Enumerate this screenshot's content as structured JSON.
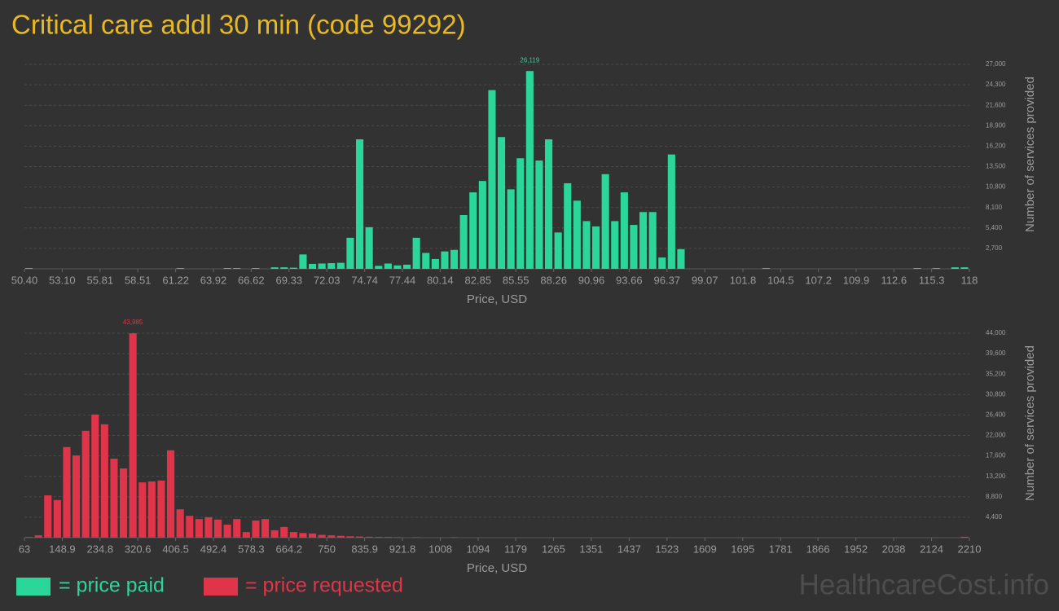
{
  "title": "Critical care addl 30 min (code 99292)",
  "watermark": "HealthcareCost.info",
  "chart_data": [
    {
      "type": "bar",
      "x_label": "Price, USD",
      "y_label": "Number of services provided",
      "grid": true,
      "xlim": [
        50.4,
        118
      ],
      "ylim": [
        0,
        27000
      ],
      "xticks": [
        {
          "value": 50.4,
          "label": "50.40"
        },
        {
          "value": 53.1,
          "label": "53.10"
        },
        55.81,
        58.51,
        61.22,
        63.92,
        66.62,
        69.33,
        72.03,
        74.74,
        77.44,
        80.14,
        82.85,
        85.55,
        88.26,
        90.96,
        93.66,
        96.37,
        99.07,
        101.8,
        104.5,
        107.2,
        109.9,
        112.6,
        115.3,
        118
      ],
      "yticks": [
        {
          "value": 2700,
          "label": "2,700"
        },
        {
          "value": 5400,
          "label": "5,400"
        },
        {
          "value": 8100,
          "label": "8,100"
        },
        {
          "value": 10800,
          "label": "10,800"
        },
        {
          "value": 13500,
          "label": "13,500"
        },
        {
          "value": 16200,
          "label": "16,200"
        },
        {
          "value": 18900,
          "label": "18,900"
        },
        {
          "value": 21600,
          "label": "21,600"
        },
        {
          "value": 24300,
          "label": "24,300"
        },
        {
          "value": 27000,
          "label": "27,000"
        }
      ],
      "series": [
        {
          "name": "= price paid",
          "color": "#2bd69a",
          "values": [
            100,
            0,
            0,
            0,
            0,
            0,
            0,
            0,
            0,
            0,
            0,
            0,
            0,
            0,
            0,
            0,
            100,
            0,
            0,
            0,
            0,
            100,
            100,
            0,
            100,
            0,
            200,
            200,
            150,
            1900,
            650,
            700,
            750,
            800,
            4100,
            17100,
            5500,
            400,
            700,
            450,
            550,
            4100,
            2100,
            1300,
            2300,
            2500,
            7100,
            10100,
            11600,
            23600,
            17400,
            10500,
            14600,
            26119,
            14300,
            17100,
            4800,
            11300,
            9000,
            6300,
            5600,
            12500,
            6300,
            10100,
            5800,
            7500,
            7500,
            1500,
            15100,
            2600,
            0,
            0,
            0,
            0,
            0,
            0,
            0,
            0,
            100,
            0,
            0,
            0,
            0,
            0,
            0,
            0,
            0,
            0,
            0,
            0,
            0,
            0,
            0,
            0,
            100,
            0,
            100,
            0,
            200,
            200
          ],
          "value_labels": [
            null,
            null,
            null,
            null,
            null,
            null,
            null,
            null,
            null,
            null,
            null,
            null,
            null,
            null,
            null,
            null,
            null,
            null,
            null,
            null,
            null,
            null,
            null,
            null,
            null,
            null,
            null,
            null,
            null,
            null,
            null,
            null,
            null,
            null,
            null,
            null,
            null,
            null,
            null,
            null,
            null,
            null,
            null,
            null,
            null,
            null,
            null,
            null,
            null,
            null,
            null,
            null,
            null,
            "26,119",
            null,
            null,
            null,
            null,
            null,
            null,
            null,
            null,
            null,
            null,
            null,
            null,
            null,
            null,
            null,
            null,
            null,
            null,
            null,
            null,
            null,
            null,
            null,
            null,
            null,
            null,
            null,
            null,
            null,
            null,
            null,
            null,
            null,
            null,
            null,
            null,
            null,
            null,
            null,
            null,
            null,
            null,
            null,
            null,
            null,
            null
          ]
        }
      ]
    },
    {
      "type": "bar",
      "x_label": "Price, USD",
      "y_label": "Number of services provided",
      "grid": true,
      "xlim": [
        63,
        2210
      ],
      "ylim": [
        0,
        44000
      ],
      "xticks": [
        63,
        148.9,
        234.8,
        320.6,
        406.5,
        492.4,
        578.3,
        664.2,
        750,
        835.9,
        921.8,
        1008,
        1094,
        1179,
        1265,
        1351,
        1437,
        1523,
        1609,
        1695,
        1781,
        1866,
        1952,
        2038,
        2124,
        2210
      ],
      "yticks": [
        {
          "value": 4400,
          "label": "4,400"
        },
        {
          "value": 8800,
          "label": "8,800"
        },
        {
          "value": 13200,
          "label": "13,200"
        },
        {
          "value": 17600,
          "label": "17,600"
        },
        {
          "value": 22000,
          "label": "22,000"
        },
        {
          "value": 26400,
          "label": "26,400"
        },
        {
          "value": 30800,
          "label": "30,800"
        },
        {
          "value": 35200,
          "label": "35,200"
        },
        {
          "value": 39600,
          "label": "39,600"
        },
        {
          "value": 44000,
          "label": "44,000"
        }
      ],
      "series": [
        {
          "name": "= price requested",
          "color": "#e0344a",
          "values": [
            150,
            500,
            9100,
            8100,
            19500,
            17700,
            23000,
            26500,
            24400,
            17000,
            14900,
            43985,
            11900,
            12100,
            12300,
            18800,
            6100,
            4700,
            4000,
            4400,
            3900,
            2800,
            4000,
            1200,
            3700,
            4000,
            1600,
            2300,
            1200,
            1000,
            900,
            600,
            500,
            400,
            300,
            250,
            200,
            150,
            150,
            100,
            0,
            100,
            0,
            0,
            0,
            100,
            0,
            0,
            0,
            0,
            0,
            0,
            0,
            0,
            0,
            0,
            0,
            0,
            0,
            0,
            0,
            0,
            0,
            0,
            0,
            0,
            0,
            0,
            0,
            0,
            0,
            0,
            0,
            0,
            0,
            0,
            0,
            0,
            0,
            0,
            0,
            0,
            0,
            0,
            0,
            0,
            0,
            0,
            0,
            0,
            0,
            0,
            0,
            0,
            0,
            0,
            0,
            0,
            0,
            200
          ],
          "value_labels": [
            null,
            null,
            null,
            null,
            null,
            null,
            null,
            null,
            null,
            null,
            null,
            "43,985",
            null,
            null,
            null,
            null,
            null,
            null,
            null,
            null,
            null,
            null,
            null,
            null,
            null,
            null,
            null,
            null,
            null,
            null,
            null,
            null,
            null,
            null,
            null,
            null,
            null,
            null,
            null,
            null,
            null,
            null,
            null,
            null,
            null,
            null,
            null,
            null,
            null,
            null,
            null,
            null,
            null,
            null,
            null,
            null,
            null,
            null,
            null,
            null,
            null,
            null,
            null,
            null,
            null,
            null,
            null,
            null,
            null,
            null,
            null,
            null,
            null,
            null,
            null,
            null,
            null,
            null,
            null,
            null,
            null,
            null,
            null,
            null,
            null,
            null,
            null,
            null,
            null,
            null,
            null,
            null,
            null,
            null,
            null,
            null,
            null,
            null,
            null,
            null
          ]
        }
      ]
    }
  ]
}
